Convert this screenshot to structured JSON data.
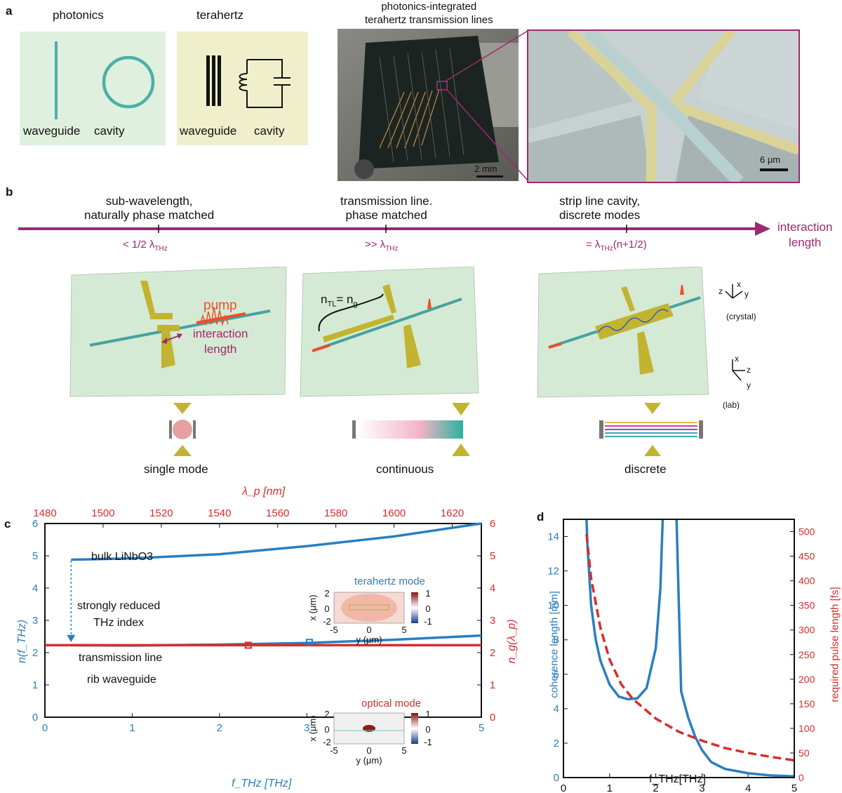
{
  "panel_a": {
    "letter": "a",
    "photonics_title": "photonics",
    "terahertz_title": "terahertz",
    "photonics_waveguide": "waveguide",
    "photonics_cavity": "cavity",
    "thz_waveguide": "waveguide",
    "thz_cavity": "cavity",
    "photo_title_line1": "photonics-integrated",
    "photo_title_line2": "terahertz transmission lines",
    "scale_chip": "2 mm",
    "scale_sem": "6 μm",
    "colors": {
      "photonics_bg": "#dff0df",
      "thz_bg": "#efefcc",
      "accent": "#9b2a6e",
      "teal": "#4bb0a8"
    }
  },
  "panel_b": {
    "letter": "b",
    "regime1_line1": "sub-wavelength,",
    "regime1_line2": "naturally phase matched",
    "regime2_line1": "transmission line.",
    "regime2_line2": "phase matched",
    "regime3_line1": "strip line cavity,",
    "regime3_line2": "discrete modes",
    "tick1": "< 1/2 λ",
    "tick1_sub": "THz",
    "tick2": ">> λ",
    "tick2_sub": "THz",
    "tick3": "= λ",
    "tick3_sub": "THz",
    "tick3_suffix": "(n+1/2)",
    "axis_line1": "interaction",
    "axis_line2": "length",
    "pump": "pump",
    "interaction_line1": "interaction",
    "interaction_line2": "length",
    "ntl": "n",
    "ntl_sub": "TL",
    "ntl_eq": "= n",
    "ng_sub": "g",
    "crystal": "(crystal)",
    "lab": "(lab)",
    "axis_x": "x",
    "axis_y": "y",
    "axis_z": "z",
    "mode1": "single mode",
    "mode2": "continuous",
    "mode3": "discrete"
  },
  "panel_c": {
    "letter": "c",
    "chart_data": {
      "type": "line",
      "xlabel": "f_THz [THz]",
      "ylabel_left": "n(f_THz)",
      "ylabel_right": "n_g(λ_p)",
      "top_xlabel": "λ_p [nm]",
      "xlim": [
        0,
        5
      ],
      "ylim": [
        0,
        6
      ],
      "top_xlim": [
        1480,
        1630
      ],
      "x_ticks": [
        "0",
        "1",
        "2",
        "3",
        "4",
        "5"
      ],
      "y_ticks": [
        "0",
        "1",
        "2",
        "3",
        "4",
        "5",
        "6"
      ],
      "top_ticks": [
        "1480",
        "1500",
        "1520",
        "1540",
        "1560",
        "1580",
        "1600",
        "1620"
      ],
      "series": [
        {
          "name": "bulk LiNbO3",
          "x": [
            0.3,
            1,
            2,
            3,
            4,
            5
          ],
          "y": [
            4.88,
            4.92,
            5.05,
            5.3,
            5.6,
            6.0
          ]
        },
        {
          "name": "transmission line",
          "x": [
            0.3,
            1,
            2,
            3,
            4,
            5
          ],
          "y": [
            2.23,
            2.22,
            2.25,
            2.3,
            2.4,
            2.53
          ]
        },
        {
          "name": "rib waveguide",
          "lambda_nm": [
            1480,
            1630
          ],
          "y": [
            2.23,
            2.23
          ]
        }
      ],
      "annotations": {
        "bulk": "bulk LiNbO3",
        "reduced_line1": "strongly reduced",
        "reduced_line2": "THz index",
        "tline": "transmission line",
        "rib": "rib waveguide",
        "thz_mode": "terahertz mode",
        "opt_mode": "optical mode",
        "inset_x_ticks": [
          "-5",
          "0",
          "5"
        ],
        "inset_y_ticks": [
          "2",
          "0",
          "-2"
        ],
        "inset_xlabel": "y (μm)",
        "inset_ylabel": "x (μm)",
        "cbar_ticks": [
          "1",
          "0",
          "-1"
        ]
      }
    }
  },
  "panel_d": {
    "letter": "d",
    "chart_data": {
      "type": "line",
      "xlabel": "f_THz[THz]",
      "ylabel_left": "coherence length [mm]",
      "ylabel_right": "required pulse length [fs]",
      "xlim": [
        0,
        5
      ],
      "ylim_left": [
        0,
        15
      ],
      "ylim_right": [
        0,
        525
      ],
      "x_ticks": [
        "0",
        "1",
        "2",
        "3",
        "4",
        "5"
      ],
      "y_ticks_left": [
        "0",
        "2",
        "4",
        "6",
        "8",
        "10",
        "12",
        "14"
      ],
      "y_ticks_right": [
        "0",
        "50",
        "100",
        "150",
        "200",
        "250",
        "300",
        "350",
        "400",
        "450",
        "500"
      ],
      "series": [
        {
          "name": "coherence length",
          "x": [
            0.5,
            0.52,
            0.6,
            0.7,
            0.8,
            1.0,
            1.2,
            1.4,
            1.6,
            1.8,
            2.0,
            2.1,
            2.15
          ],
          "y": [
            15,
            13.5,
            10,
            8,
            6.8,
            5.4,
            4.7,
            4.55,
            4.6,
            5.2,
            7.5,
            11,
            15
          ]
        },
        {
          "name": "coherence length 2",
          "x": [
            2.45,
            2.55,
            2.7,
            2.85,
            3.0,
            3.2,
            3.5,
            4.0,
            4.5,
            5.0
          ],
          "y": [
            15,
            5.0,
            3.5,
            2.4,
            1.6,
            0.9,
            0.5,
            0.25,
            0.12,
            0.07
          ]
        },
        {
          "name": "required pulse length",
          "x": [
            0.5,
            0.6,
            0.8,
            1.0,
            1.25,
            1.5,
            2.0,
            2.5,
            3.0,
            3.5,
            4.0,
            4.5,
            5.0
          ],
          "y": [
            495,
            405,
            305,
            240,
            190,
            160,
            120,
            93,
            75,
            60,
            50,
            42,
            35
          ]
        }
      ]
    }
  }
}
